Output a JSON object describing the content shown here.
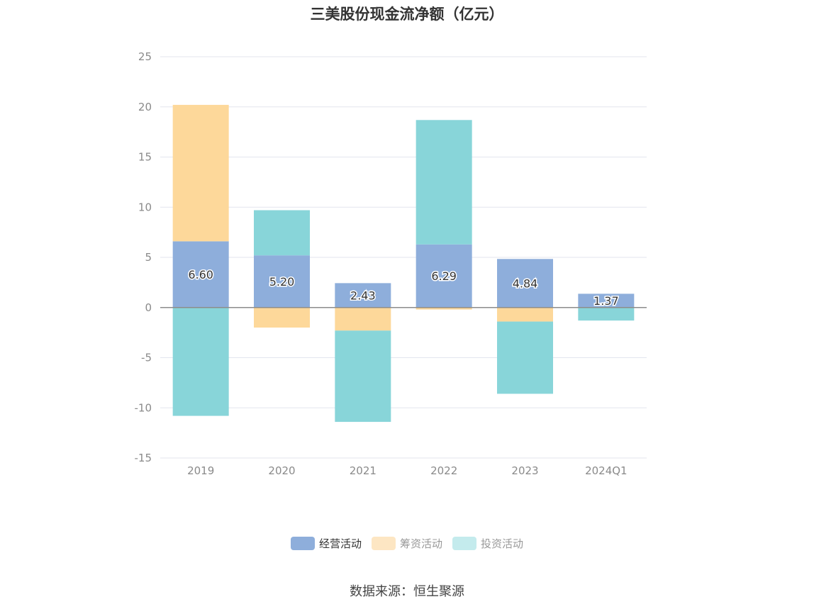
{
  "title": "三美股份现金流净额（亿元）",
  "source": "数据来源：恒生聚源",
  "chart_data": {
    "type": "bar",
    "stacked": true,
    "categories": [
      "2019",
      "2020",
      "2021",
      "2022",
      "2023",
      "2024Q1"
    ],
    "ylim": [
      -15,
      25
    ],
    "yticks": [
      25,
      20,
      15,
      10,
      5,
      0,
      -5,
      -10,
      -15
    ],
    "grid": true,
    "legend_position": "bottom",
    "series": [
      {
        "name": "经营活动",
        "color": "#8eaedb",
        "legend_color": "#8eaedb",
        "values": [
          6.6,
          5.2,
          2.43,
          6.29,
          4.84,
          1.37
        ],
        "labels": [
          "6.60",
          "5.20",
          "2.43",
          "6.29",
          "4.84",
          "1.37"
        ],
        "text_color": "#333333"
      },
      {
        "name": "筹资活动",
        "color": "#fdd89a",
        "legend_color": "#fde6c3",
        "values": [
          13.6,
          -2.0,
          -2.3,
          -0.2,
          -1.4,
          0.0
        ],
        "text_color": "#999999"
      },
      {
        "name": "投资活动",
        "color": "#88d5d9",
        "legend_color": "#c4ebed",
        "values": [
          -10.8,
          4.5,
          -9.1,
          12.4,
          -7.2,
          -1.3
        ],
        "text_color": "#999999"
      }
    ]
  }
}
